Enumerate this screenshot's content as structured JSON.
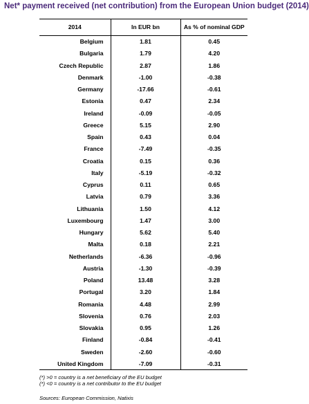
{
  "title": "Net* payment received (net contribution) from the European Union budget (2014)",
  "table": {
    "headers": [
      "2014",
      "In EUR bn",
      "As % of nominal GDP"
    ],
    "rows": [
      [
        "Belgium",
        "1.81",
        "0.45"
      ],
      [
        "Bulgaria",
        "1.79",
        "4.20"
      ],
      [
        "Czech Republic",
        "2.87",
        "1.86"
      ],
      [
        "Denmark",
        "-1.00",
        "-0.38"
      ],
      [
        "Germany",
        "-17.66",
        "-0.61"
      ],
      [
        "Estonia",
        "0.47",
        "2.34"
      ],
      [
        "Ireland",
        "-0.09",
        "-0.05"
      ],
      [
        "Greece",
        "5.15",
        "2.90"
      ],
      [
        "Spain",
        "0.43",
        "0.04"
      ],
      [
        "France",
        "-7.49",
        "-0.35"
      ],
      [
        "Croatia",
        "0.15",
        "0.36"
      ],
      [
        "Italy",
        "-5.19",
        "-0.32"
      ],
      [
        "Cyprus",
        "0.11",
        "0.65"
      ],
      [
        "Latvia",
        "0.79",
        "3.36"
      ],
      [
        "Lithuania",
        "1.50",
        "4.12"
      ],
      [
        "Luxembourg",
        "1.47",
        "3.00"
      ],
      [
        "Hungary",
        "5.62",
        "5.40"
      ],
      [
        "Malta",
        "0.18",
        "2.21"
      ],
      [
        "Netherlands",
        "-6.36",
        "-0.96"
      ],
      [
        "Austria",
        "-1.30",
        "-0.39"
      ],
      [
        "Poland",
        "13.48",
        "3.28"
      ],
      [
        "Portugal",
        "3.20",
        "1.84"
      ],
      [
        "Romania",
        "4.48",
        "2.99"
      ],
      [
        "Slovenia",
        "0.76",
        "2.03"
      ],
      [
        "Slovakia",
        "0.95",
        "1.26"
      ],
      [
        "Finland",
        "-0.84",
        "-0.41"
      ],
      [
        "Sweden",
        "-2.60",
        "-0.60"
      ],
      [
        "United Kingdom",
        "-7.09",
        "-0.31"
      ]
    ]
  },
  "footnotes": [
    "(*) >0 = country is a net beneficiary of the EU budget",
    "(*) <0 = country is a net contributor to the EU budget"
  ],
  "source": "Sources: European Commission, Natixis",
  "colors": {
    "title": "#4b2a7a"
  }
}
